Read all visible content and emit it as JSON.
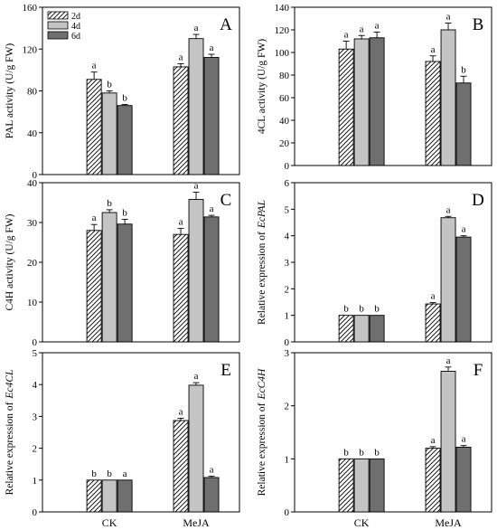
{
  "figure": {
    "categories": [
      "CK",
      "MeJA"
    ],
    "legend": {
      "entries": [
        {
          "label": "2d",
          "pattern": "hatch"
        },
        {
          "label": "4d",
          "pattern": "light"
        },
        {
          "label": "6d",
          "pattern": "dark"
        }
      ]
    },
    "colors": {
      "light_bar": "#c4c4c4",
      "dark_bar": "#6f6f6f",
      "hatch_stroke": "#000000",
      "axis": "#000000"
    }
  },
  "chart_data": [
    {
      "id": "A",
      "type": "bar",
      "ylabel": "PAL activity (U/g FW)",
      "ylim": [
        0,
        160
      ],
      "yticks": [
        0,
        40,
        80,
        120,
        160
      ],
      "categories": [
        "CK",
        "MeJA"
      ],
      "show_category_labels": false,
      "series": [
        {
          "name": "2d",
          "values": [
            91,
            103
          ],
          "errors": [
            7,
            3
          ],
          "letters": [
            "a",
            "a"
          ]
        },
        {
          "name": "4d",
          "values": [
            78,
            130
          ],
          "errors": [
            2,
            4
          ],
          "letters": [
            "b",
            "a"
          ]
        },
        {
          "name": "6d",
          "values": [
            66,
            112
          ],
          "errors": [
            1,
            3
          ],
          "letters": [
            "b",
            "a"
          ]
        }
      ]
    },
    {
      "id": "B",
      "type": "bar",
      "ylabel": "4CL activity (U/g FW)",
      "ylim": [
        0,
        140
      ],
      "yticks": [
        0,
        20,
        40,
        60,
        80,
        100,
        120,
        140
      ],
      "categories": [
        "CK",
        "MeJA"
      ],
      "show_category_labels": false,
      "series": [
        {
          "name": "2d",
          "values": [
            103,
            92
          ],
          "errors": [
            7,
            5
          ],
          "letters": [
            "a",
            "a"
          ]
        },
        {
          "name": "4d",
          "values": [
            112,
            120
          ],
          "errors": [
            3,
            6
          ],
          "letters": [
            "a",
            "a"
          ]
        },
        {
          "name": "6d",
          "values": [
            113,
            73
          ],
          "errors": [
            5,
            6
          ],
          "letters": [
            "a",
            "b"
          ]
        }
      ]
    },
    {
      "id": "C",
      "type": "bar",
      "ylabel": "C4H activity (U/g FW)",
      "ylim": [
        0,
        40
      ],
      "yticks": [
        0,
        10,
        20,
        30,
        40
      ],
      "categories": [
        "CK",
        "MeJA"
      ],
      "show_category_labels": false,
      "series": [
        {
          "name": "2d",
          "values": [
            28,
            27
          ],
          "errors": [
            1.5,
            1.5
          ],
          "letters": [
            "a",
            "a"
          ]
        },
        {
          "name": "4d",
          "values": [
            32.5,
            35.8
          ],
          "errors": [
            0.7,
            1.8
          ],
          "letters": [
            "b",
            "a"
          ]
        },
        {
          "name": "6d",
          "values": [
            29.6,
            31.4
          ],
          "errors": [
            1.2,
            0.4
          ],
          "letters": [
            "b",
            "a"
          ]
        }
      ]
    },
    {
      "id": "D",
      "type": "bar",
      "ylabel": "Relative expression of",
      "ylabel_gene": "EcPAL",
      "ylim": [
        0,
        6
      ],
      "yticks": [
        0,
        1,
        2,
        3,
        4,
        5,
        6
      ],
      "categories": [
        "CK",
        "MeJA"
      ],
      "show_category_labels": false,
      "series": [
        {
          "name": "2d",
          "values": [
            1,
            1.43
          ],
          "errors": [
            0,
            0.05
          ],
          "letters": [
            "b",
            "a"
          ]
        },
        {
          "name": "4d",
          "values": [
            1,
            4.68
          ],
          "errors": [
            0,
            0.05
          ],
          "letters": [
            "b",
            "a"
          ]
        },
        {
          "name": "6d",
          "values": [
            1,
            3.95
          ],
          "errors": [
            0,
            0.05
          ],
          "letters": [
            "b",
            "a"
          ]
        }
      ]
    },
    {
      "id": "E",
      "type": "bar",
      "ylabel": "Relative expression of",
      "ylabel_gene": "Ec4CL",
      "ylim": [
        0,
        5
      ],
      "yticks": [
        0,
        1,
        2,
        3,
        4,
        5
      ],
      "categories": [
        "CK",
        "MeJA"
      ],
      "show_category_labels": true,
      "series": [
        {
          "name": "2d",
          "values": [
            1,
            2.87
          ],
          "errors": [
            0,
            0.07
          ],
          "letters": [
            "b",
            "a"
          ]
        },
        {
          "name": "4d",
          "values": [
            1,
            3.98
          ],
          "errors": [
            0,
            0.08
          ],
          "letters": [
            "b",
            "a"
          ]
        },
        {
          "name": "6d",
          "values": [
            1,
            1.08
          ],
          "errors": [
            0,
            0.04
          ],
          "letters": [
            "a",
            "a"
          ]
        }
      ]
    },
    {
      "id": "F",
      "type": "bar",
      "ylabel": "Relative expression of",
      "ylabel_gene": "EcC4H",
      "ylim": [
        0,
        3
      ],
      "yticks": [
        0,
        1,
        2,
        3
      ],
      "categories": [
        "CK",
        "MeJA"
      ],
      "show_category_labels": true,
      "series": [
        {
          "name": "2d",
          "values": [
            1,
            1.2
          ],
          "errors": [
            0,
            0.03
          ],
          "letters": [
            "b",
            "a"
          ]
        },
        {
          "name": "4d",
          "values": [
            1,
            2.65
          ],
          "errors": [
            0,
            0.08
          ],
          "letters": [
            "b",
            "a"
          ]
        },
        {
          "name": "6d",
          "values": [
            1,
            1.22
          ],
          "errors": [
            0,
            0.03
          ],
          "letters": [
            "b",
            "a"
          ]
        }
      ]
    }
  ]
}
